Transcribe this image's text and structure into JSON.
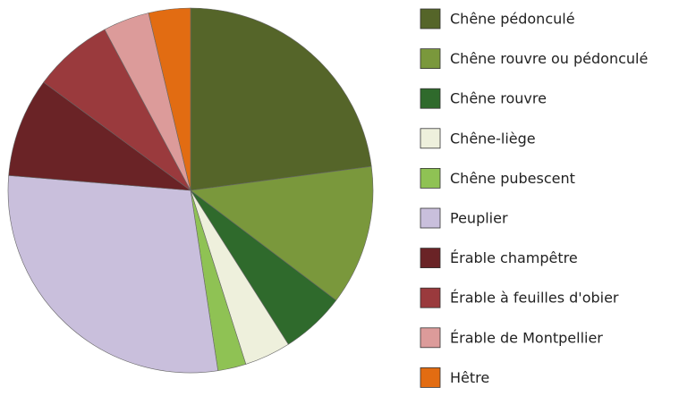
{
  "chart_data": {
    "type": "pie",
    "categories": [
      "Chêne pédonculé",
      "Chêne rouvre ou pédonculé",
      "Chêne rouvre",
      "Chêne-liège",
      "Chêne pubescent",
      "Peuplier",
      "Érable champêtre",
      "Érable à feuilles d'obier",
      "Érable de Montpellier",
      "Hêtre"
    ],
    "values": [
      22.9,
      12.4,
      5.7,
      4.1,
      2.5,
      28.7,
      8.8,
      7.1,
      4.1,
      3.7
    ],
    "colors": [
      "#556529",
      "#7a983c",
      "#2f6a2c",
      "#eef0dc",
      "#8fc254",
      "#c9bfdc",
      "#6a2326",
      "#9a3a3d",
      "#dc9b9a",
      "#e26c12"
    ]
  }
}
